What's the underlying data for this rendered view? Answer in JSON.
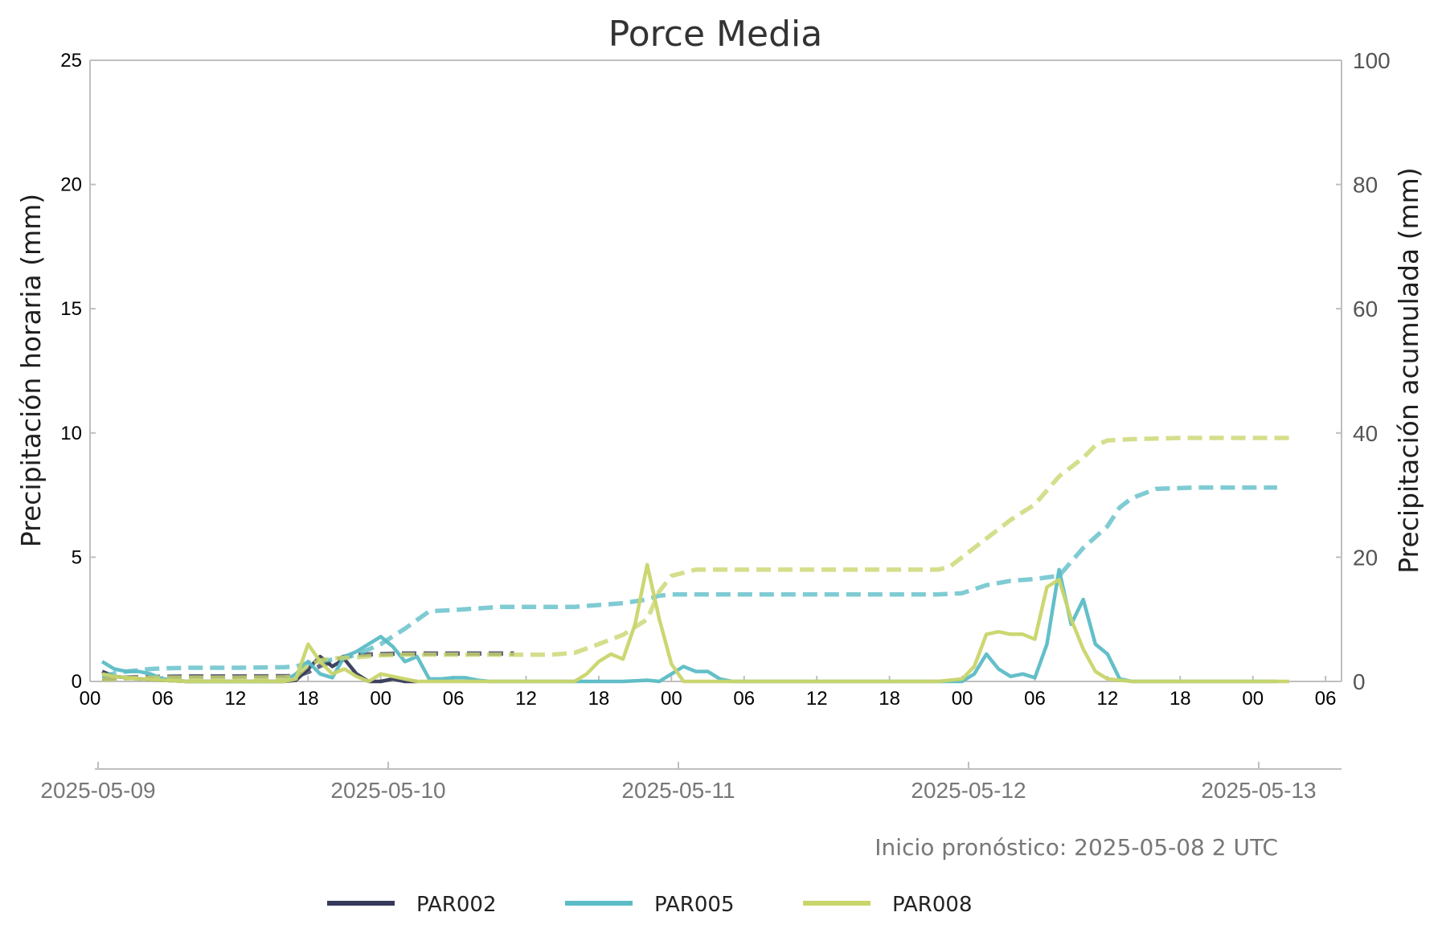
{
  "chart_data": {
    "type": "line",
    "title": "Porce Media",
    "ylabel_left": "Precipitación horaria (mm)",
    "ylabel_right": "Precipitación acumulada (mm)",
    "ylim_left": [
      0,
      25
    ],
    "ylim_right": [
      0,
      100
    ],
    "yticks_left": [
      "0",
      "5",
      "10",
      "15",
      "20",
      "25"
    ],
    "yticks_right": [
      "0",
      "20",
      "40",
      "60",
      "80",
      "100"
    ],
    "xlim_hours": [
      0,
      103
    ],
    "hour_ticks": [
      "00",
      "06",
      "12",
      "18",
      "00",
      "06",
      "12",
      "18",
      "00",
      "06",
      "12",
      "18",
      "00",
      "06",
      "12",
      "18",
      "00",
      "06"
    ],
    "date_ticks": [
      "2025-05-09",
      "2025-05-10",
      "2025-05-11",
      "2025-05-12",
      "2025-05-13"
    ],
    "annotation": "Inicio pronóstico: 2025-05-08 2 UTC",
    "grid": false,
    "legend_position": "bottom-center",
    "series": [
      {
        "name": "PAR002",
        "color": "#363a5a",
        "hourly": {
          "x": [
            1,
            2,
            4,
            6,
            8,
            10,
            12,
            14,
            16,
            17,
            18,
            19,
            20,
            21,
            22,
            23,
            24,
            25,
            26,
            27
          ],
          "y": [
            0.4,
            0.2,
            0.1,
            0.05,
            0,
            0,
            0,
            0,
            0,
            0.05,
            0.5,
            1.0,
            0.6,
            0.9,
            0.3,
            0,
            0,
            0.1,
            0,
            0
          ]
        },
        "cumulative": {
          "x": [
            1,
            4,
            8,
            12,
            17,
            18,
            19,
            20,
            21,
            22,
            24,
            26,
            28,
            30,
            32,
            35
          ],
          "y": [
            0.4,
            0.7,
            0.8,
            0.8,
            0.85,
            1.5,
            2.5,
            3.2,
            4.0,
            4.3,
            4.4,
            4.5,
            4.5,
            4.5,
            4.5,
            4.5
          ]
        }
      },
      {
        "name": "PAR005",
        "color": "#5bbcc6",
        "hourly": {
          "x": [
            1,
            2,
            3,
            4,
            5,
            6,
            8,
            10,
            12,
            14,
            16,
            17,
            18,
            19,
            20,
            21,
            22,
            23,
            24,
            25,
            26,
            27,
            28,
            29,
            30,
            31,
            32,
            33,
            36,
            40,
            44,
            46,
            47,
            48,
            49,
            50,
            51,
            52,
            53,
            54,
            56,
            60,
            66,
            70,
            72,
            73,
            74,
            75,
            76,
            77,
            78,
            79,
            80,
            81,
            82,
            83,
            84,
            85,
            86,
            87,
            88,
            90,
            92,
            95,
            98
          ],
          "y": [
            0.8,
            0.5,
            0.4,
            0.4,
            0.3,
            0.1,
            0,
            0,
            0,
            0,
            0,
            0.3,
            0.8,
            0.3,
            0.15,
            1.0,
            1.2,
            1.5,
            1.8,
            1.4,
            0.8,
            1.0,
            0.1,
            0.1,
            0.15,
            0.15,
            0.05,
            0,
            0,
            0,
            0,
            0.05,
            0,
            0.3,
            0.6,
            0.4,
            0.4,
            0.1,
            0,
            0,
            0,
            0,
            0,
            0,
            0,
            0.3,
            1.1,
            0.5,
            0.2,
            0.3,
            0.15,
            1.5,
            4.5,
            2.3,
            3.3,
            1.5,
            1.1,
            0.1,
            0,
            0,
            0,
            0,
            0,
            0,
            0
          ]
        },
        "cumulative": {
          "x": [
            1,
            2,
            3,
            4,
            5,
            6,
            8,
            12,
            16,
            17,
            18,
            20,
            21,
            22,
            24,
            26,
            28,
            30,
            34,
            36,
            40,
            42,
            44,
            46,
            47,
            48,
            50,
            54,
            60,
            66,
            70,
            72,
            74,
            76,
            78,
            80,
            82,
            84,
            85,
            86,
            88,
            91,
            93,
            95,
            98
          ],
          "y": [
            0.8,
            1.3,
            1.6,
            1.8,
            2.0,
            2.1,
            2.2,
            2.2,
            2.3,
            2.4,
            3.0,
            3.5,
            3.8,
            4.3,
            6.0,
            8.5,
            11.3,
            11.5,
            12.0,
            12.0,
            12.0,
            12.3,
            12.6,
            13.2,
            13.8,
            14.0,
            14.0,
            14.0,
            14.0,
            14.0,
            14.0,
            14.2,
            15.5,
            16.2,
            16.5,
            17.0,
            21.5,
            25.0,
            28.0,
            29.5,
            31.0,
            31.2,
            31.2,
            31.2,
            31.2
          ]
        }
      },
      {
        "name": "PAR008",
        "color": "#c9d56a",
        "hourly": {
          "x": [
            1,
            2,
            4,
            6,
            8,
            10,
            12,
            14,
            16,
            17,
            18,
            19,
            20,
            21,
            22,
            23,
            24,
            25,
            26,
            27,
            28,
            30,
            34,
            38,
            40,
            41,
            42,
            43,
            44,
            45,
            46,
            47,
            48,
            49,
            50,
            51,
            52,
            54,
            56,
            60,
            66,
            70,
            72,
            73,
            74,
            75,
            76,
            77,
            78,
            79,
            80,
            81,
            82,
            83,
            84,
            86,
            88,
            90,
            92,
            95,
            99
          ],
          "y": [
            0.3,
            0.2,
            0.1,
            0.05,
            0,
            0,
            0,
            0,
            0,
            0.1,
            1.5,
            0.8,
            0.3,
            0.5,
            0.2,
            0,
            0.3,
            0.2,
            0.1,
            0,
            0,
            0,
            0,
            0,
            0,
            0.3,
            0.8,
            1.1,
            0.9,
            2.3,
            4.7,
            2.5,
            0.7,
            0,
            0,
            0,
            0,
            0,
            0,
            0,
            0,
            0,
            0.1,
            0.6,
            1.9,
            2.0,
            1.9,
            1.9,
            1.7,
            3.8,
            4.1,
            2.5,
            1.3,
            0.4,
            0.1,
            0,
            0,
            0,
            0,
            0,
            0
          ]
        },
        "cumulative": {
          "x": [
            1,
            4,
            8,
            12,
            16,
            17,
            18,
            19,
            20,
            22,
            24,
            26,
            28,
            30,
            34,
            38,
            40,
            42,
            44,
            46,
            47,
            48,
            50,
            54,
            60,
            66,
            70,
            71,
            72,
            74,
            76,
            78,
            80,
            82,
            83,
            84,
            86,
            90,
            95,
            99
          ],
          "y": [
            0.3,
            0.6,
            0.6,
            0.6,
            0.65,
            0.8,
            2.6,
            3.4,
            3.7,
            3.9,
            4.2,
            4.3,
            4.3,
            4.3,
            4.3,
            4.3,
            4.6,
            6.0,
            7.5,
            10.0,
            14.5,
            17.0,
            18.0,
            18.0,
            18.0,
            18.0,
            18.0,
            18.5,
            20.0,
            23.0,
            26.0,
            28.5,
            33.0,
            36.0,
            38.0,
            38.8,
            39.0,
            39.2,
            39.2,
            39.2
          ]
        }
      }
    ]
  }
}
